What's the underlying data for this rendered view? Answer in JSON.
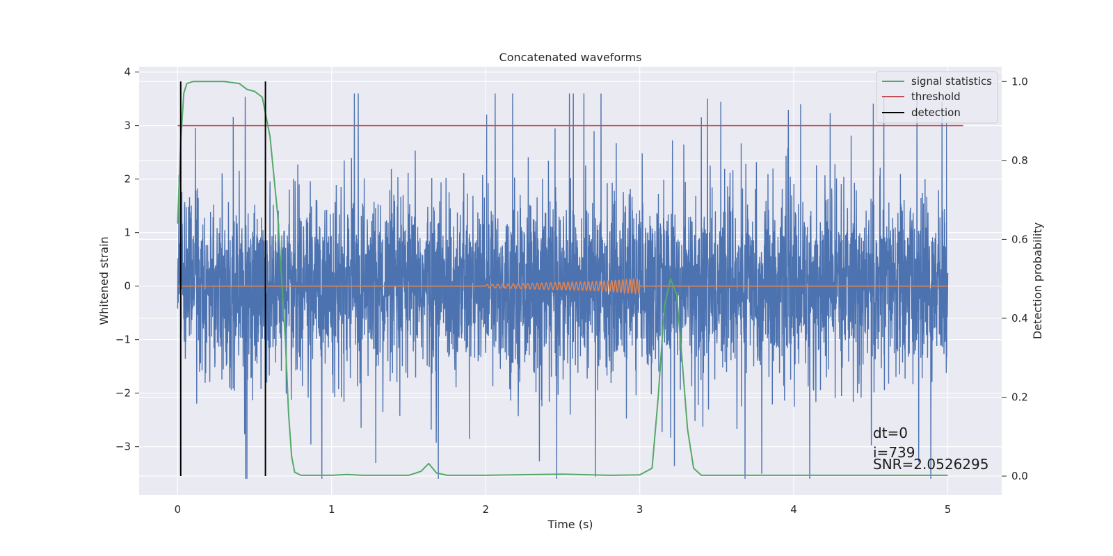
{
  "chart_data": {
    "type": "line",
    "title": "Concatenated waveforms",
    "xlabel": "Time (s)",
    "ylabel": "Whitened strain",
    "y2label": "Detection probability",
    "xlim": [
      -0.25,
      5.35
    ],
    "ylim": [
      -3.9,
      4.1
    ],
    "y2lim": [
      -0.0475,
      1.0375
    ],
    "x_ticks": [
      0,
      1,
      2,
      3,
      4,
      5
    ],
    "y_ticks": [
      -3,
      -2,
      -1,
      0,
      1,
      2,
      3,
      4
    ],
    "y2_ticks": [
      0.0,
      0.2,
      0.4,
      0.6,
      0.8,
      1.0
    ],
    "x_tick_labels": [
      "0",
      "1",
      "2",
      "3",
      "4",
      "5"
    ],
    "y_tick_labels": [
      "−3",
      "−2",
      "−1",
      "0",
      "1",
      "2",
      "3",
      "4"
    ],
    "y2_tick_labels": [
      "0.0",
      "0.2",
      "0.4",
      "0.6",
      "0.8",
      "1.0"
    ],
    "grid": true,
    "legend_position": "top-right",
    "colors": {
      "noise": "#4c72b0",
      "injection": "#dd8452",
      "signal_statistics": "#55a868",
      "threshold": "#c44e52",
      "detection": "#000000",
      "background": "#eaeaf2",
      "grid": "#ffffff"
    },
    "series": [
      {
        "key": "noise",
        "axis": "left",
        "x_range": [
          0,
          5
        ],
        "sigma": 0.95,
        "peak_max": 3.6,
        "peak_min": -3.6
      },
      {
        "key": "injection",
        "axis": "left",
        "x": [
          0,
          2,
          2.25,
          2.5,
          2.75,
          3,
          5
        ],
        "amplitude_envelope": [
          0,
          0.03,
          0.05,
          0.07,
          0.09,
          0.14,
          0
        ],
        "chirp_start": 2.0,
        "chirp_end": 3.0
      },
      {
        "name": "signal statistics",
        "key": "signal_statistics",
        "axis": "right",
        "x": [
          0,
          0.02,
          0.04,
          0.06,
          0.1,
          0.2,
          0.3,
          0.4,
          0.45,
          0.5,
          0.55,
          0.6,
          0.65,
          0.7,
          0.72,
          0.74,
          0.76,
          0.8,
          1.0,
          1.1,
          1.2,
          1.5,
          1.58,
          1.63,
          1.68,
          1.75,
          2.0,
          2.5,
          2.8,
          3.0,
          3.08,
          3.12,
          3.16,
          3.2,
          3.24,
          3.27,
          3.31,
          3.35,
          3.4,
          4.0,
          4.5,
          5.0
        ],
        "y": [
          0.64,
          0.85,
          0.97,
          0.995,
          1.0,
          1.0,
          1.0,
          0.995,
          0.98,
          0.975,
          0.96,
          0.86,
          0.66,
          0.34,
          0.16,
          0.05,
          0.01,
          0.002,
          0.002,
          0.004,
          0.002,
          0.002,
          0.012,
          0.032,
          0.008,
          0.002,
          0.002,
          0.005,
          0.002,
          0.003,
          0.02,
          0.2,
          0.43,
          0.5,
          0.46,
          0.32,
          0.12,
          0.02,
          0.002,
          0.002,
          0.002,
          0.002
        ]
      },
      {
        "name": "threshold",
        "key": "threshold",
        "axis": "left",
        "x": [
          0,
          5.1
        ],
        "y": [
          3,
          3
        ]
      },
      {
        "name": "detection",
        "key": "detection",
        "axis": "right",
        "x": [
          0.02,
          0.57
        ],
        "y_range": [
          0.0,
          1.0
        ]
      }
    ],
    "annotations": [
      "dt=0",
      "i=739",
      "SNR=2.0526295"
    ]
  }
}
